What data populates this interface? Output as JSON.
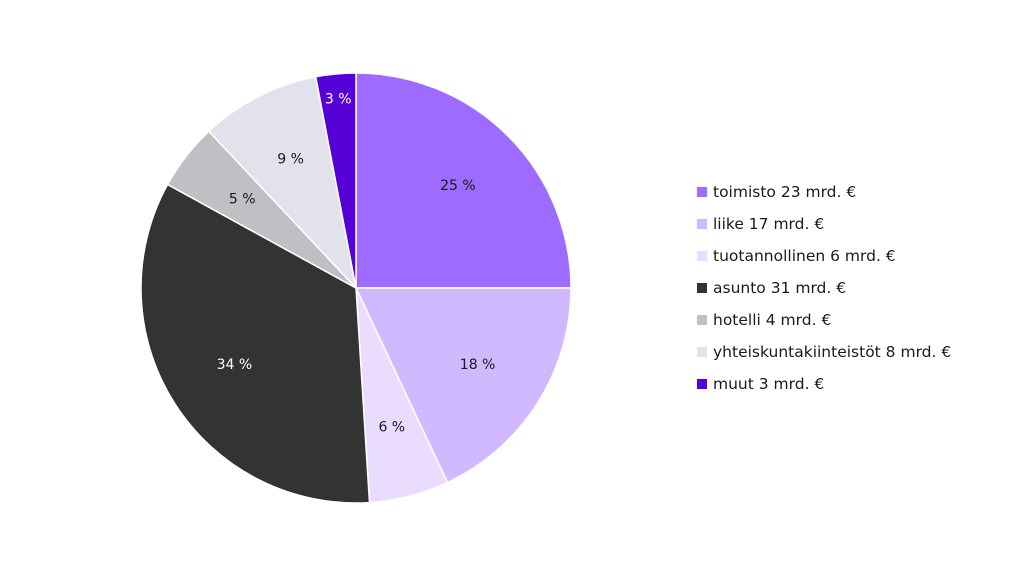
{
  "chart_data": {
    "type": "pie",
    "title": "",
    "legend_position": "right",
    "slices": [
      {
        "label": "toimisto 23 mrd. €",
        "value": 25,
        "display": "25 %",
        "color": "#9d6bff",
        "label_color": "#1a1a1a"
      },
      {
        "label": "liike 17 mrd. €",
        "value": 18,
        "display": "18 %",
        "color": "#d1b9ff",
        "label_color": "#1a1a1a"
      },
      {
        "label": "tuotannollinen 6 mrd. €",
        "value": 6,
        "display": "6 %",
        "color": "#e9dcff",
        "label_color": "#1a1a1a"
      },
      {
        "label": "asunto 31 mrd. €",
        "value": 34,
        "display": "34 %",
        "color": "#333333",
        "label_color": "#ffffff"
      },
      {
        "label": "hotelli 4 mrd. €",
        "value": 5,
        "display": "5 %",
        "color": "#bfc0c4",
        "label_color": "#1a1a1a"
      },
      {
        "label": "yhteiskuntakiinteistöt 8 mrd. €",
        "value": 9,
        "display": "9 %",
        "color": "#e2e2ec",
        "label_color": "#1a1a1a"
      },
      {
        "label": "muut 3 mrd. €",
        "value": 3,
        "display": "3 %",
        "color": "#5500d6",
        "label_color": "#ffffff"
      }
    ]
  }
}
